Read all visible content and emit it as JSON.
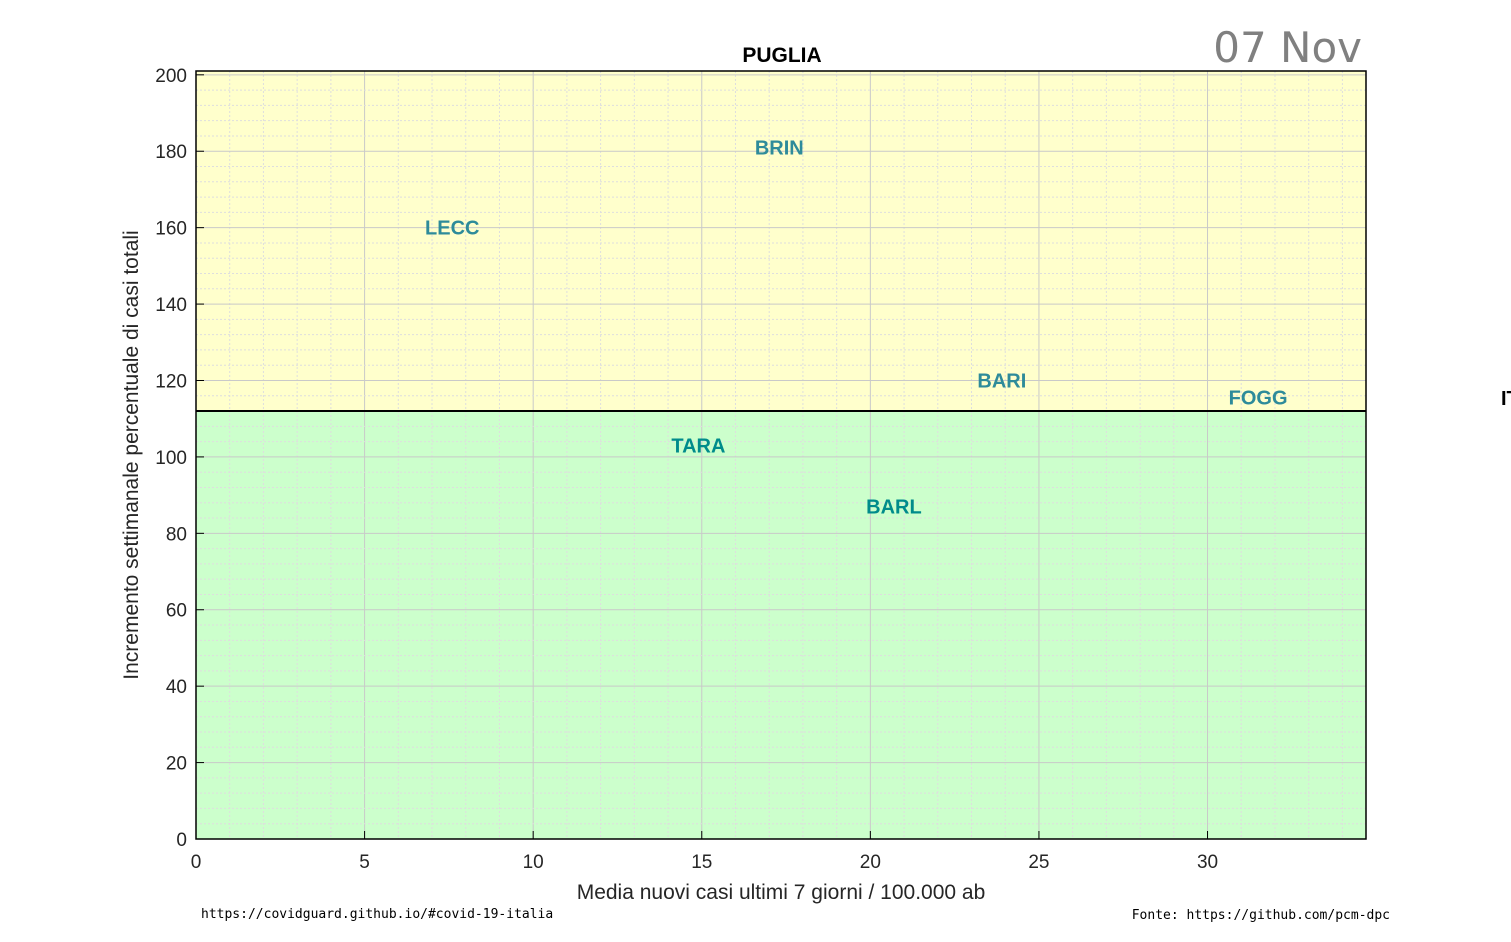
{
  "chart_data": {
    "type": "scatter",
    "title": "PUGLIA",
    "date": "07 Nov",
    "xlabel": "Media nuovi casi ultimi 7 giorni / 100.000 ab",
    "ylabel": "Incremento settimanale percentuale di casi totali",
    "xlim": [
      0,
      34.7
    ],
    "ylim": [
      0,
      201
    ],
    "xticks": [
      0,
      5,
      10,
      15,
      20,
      25,
      30
    ],
    "yticks": [
      0,
      20,
      40,
      60,
      80,
      100,
      120,
      140,
      160,
      180,
      200
    ],
    "grid": true,
    "threshold_y": 112,
    "zones": [
      {
        "name": "above",
        "from": 112,
        "to": 201,
        "color": "#ffffcc"
      },
      {
        "name": "below",
        "from": 0,
        "to": 112,
        "color": "#ccffcc"
      }
    ],
    "points": [
      {
        "label": "BRIN",
        "x": 17.3,
        "y": 181,
        "color": "#2e8b9a"
      },
      {
        "label": "LECC",
        "x": 7.6,
        "y": 160,
        "color": "#2e8b9a"
      },
      {
        "label": "BARI",
        "x": 23.9,
        "y": 120,
        "color": "#2e8b9a"
      },
      {
        "label": "FOGG",
        "x": 31.5,
        "y": 115.5,
        "color": "#2e8b9a"
      },
      {
        "label": "TARA",
        "x": 14.9,
        "y": 103,
        "color": "#008b8b"
      },
      {
        "label": "BARL",
        "x": 20.7,
        "y": 87,
        "color": "#008b8b"
      }
    ],
    "side_label": "IT"
  },
  "footer": {
    "left": "https://covidguard.github.io/#covid-19-italia",
    "right": "Fonte: https://github.com/pcm-dpc"
  }
}
